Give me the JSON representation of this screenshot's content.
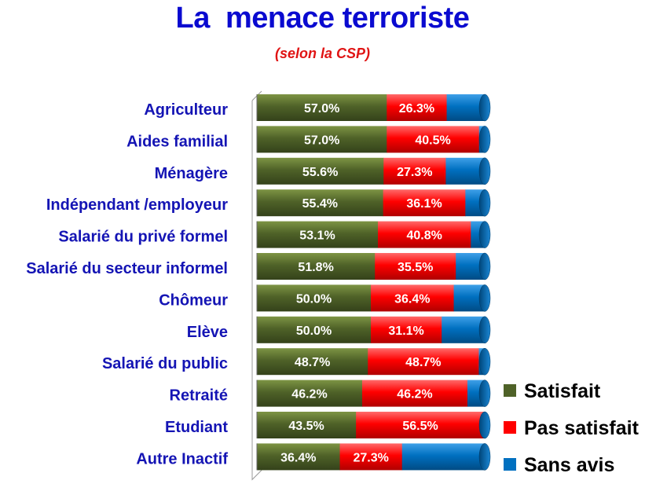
{
  "chart_data": {
    "type": "bar",
    "orientation": "horizontal",
    "stacked": true,
    "percent_stacked": true,
    "title": "La  menace terroriste",
    "subtitle": "(selon la CSP)",
    "categories": [
      "Agriculteur",
      "Aides familial",
      "Ménagère",
      "Indépendant /employeur",
      "Salarié du privé formel",
      "Salarié du secteur informel",
      "Chômeur",
      "Elève",
      "Salarié du public",
      "Retraité",
      "Etudiant",
      "Autre Inactif"
    ],
    "series": [
      {
        "name": "Satisfait",
        "color": "#4f6228",
        "values": [
          57.0,
          57.0,
          55.6,
          55.4,
          53.1,
          51.8,
          50.0,
          50.0,
          48.7,
          46.2,
          43.5,
          36.4
        ],
        "labels": [
          "57.0%",
          "57.0%",
          "55.6%",
          "55.4%",
          "53.1%",
          "51.8%",
          "50.0%",
          "50.0%",
          "48.7%",
          "46.2%",
          "43.5%",
          "36.4%"
        ]
      },
      {
        "name": "Pas satisfait",
        "color": "#ff0000",
        "values": [
          26.3,
          40.5,
          27.3,
          36.1,
          40.8,
          35.5,
          36.4,
          31.1,
          48.7,
          46.2,
          56.5,
          27.3
        ],
        "labels": [
          "26.3%",
          "40.5%",
          "27.3%",
          "36.1%",
          "40.8%",
          "35.5%",
          "36.4%",
          "31.1%",
          "48.7%",
          "46.2%",
          "56.5%",
          "27.3%"
        ]
      },
      {
        "name": "Sans avis",
        "color": "#0070c0",
        "values": [
          16.7,
          2.5,
          17.1,
          8.5,
          6.1,
          12.7,
          13.6,
          18.9,
          2.6,
          7.6,
          0.0,
          36.3
        ],
        "labels": []
      }
    ],
    "legend": {
      "position": "right",
      "entries": [
        "Satisfait",
        "Pas satisfait",
        "Sans avis"
      ]
    },
    "grid": false
  }
}
